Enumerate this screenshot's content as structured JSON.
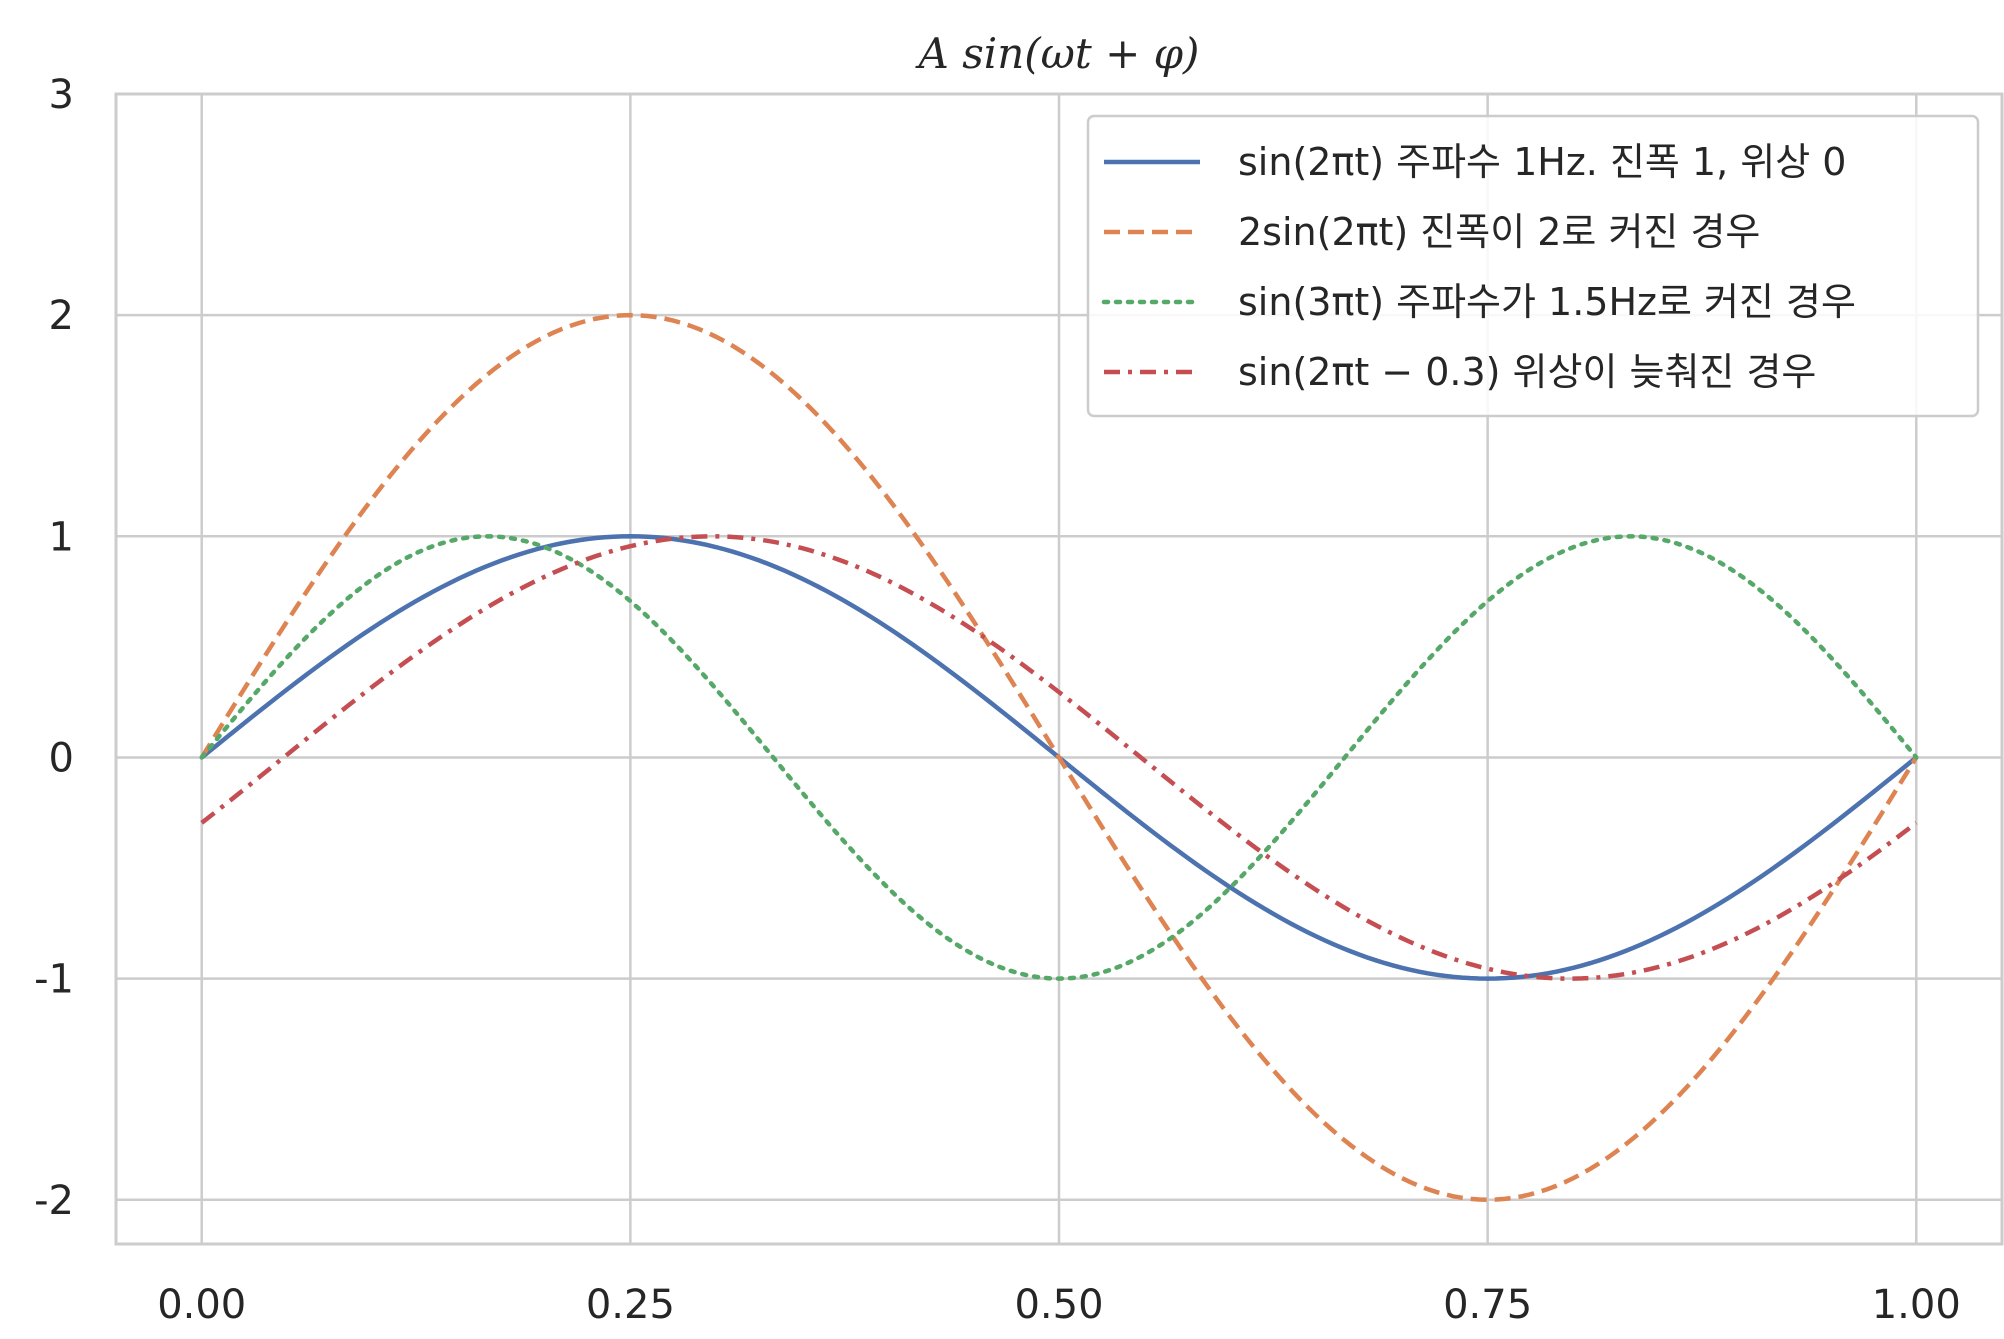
{
  "chart_data": {
    "type": "line",
    "title": "A sin(ωt + φ)",
    "xlabel": "",
    "ylabel": "",
    "xlim": [
      -0.05,
      1.05
    ],
    "ylim": [
      -2.2,
      3
    ],
    "grid": true,
    "legend_position": "top-right",
    "xticks": [
      0,
      0.25,
      0.5,
      0.75,
      1.0
    ],
    "xtick_labels": [
      "0.00",
      "0.25",
      "0.50",
      "0.75",
      "1.00"
    ],
    "yticks": [
      -2,
      -1,
      0,
      1,
      2,
      3
    ],
    "ytick_labels": [
      "-2",
      "-1",
      "0",
      "1",
      "2",
      "3"
    ],
    "x": [
      0,
      0.05,
      0.1,
      0.15,
      0.2,
      0.25,
      0.3,
      0.35,
      0.4,
      0.45,
      0.5,
      0.55,
      0.6,
      0.65,
      0.7,
      0.75,
      0.8,
      0.85,
      0.9,
      0.95,
      1.0
    ],
    "series": [
      {
        "name": "sin(2πt) 주파수 1Hz. 진폭 1, 위상 0",
        "color": "#4c72b0",
        "dash": "solid",
        "values": [
          0,
          0.309,
          0.588,
          0.809,
          0.951,
          1.0,
          0.951,
          0.809,
          0.588,
          0.309,
          0,
          -0.309,
          -0.588,
          -0.809,
          -0.951,
          -1.0,
          -0.951,
          -0.809,
          -0.588,
          -0.309,
          0
        ]
      },
      {
        "name": "2sin(2πt) 진폭이 2로 커진 경우",
        "color": "#dd8452",
        "dash": "dashed",
        "values": [
          0,
          0.618,
          1.176,
          1.618,
          1.902,
          2.0,
          1.902,
          1.618,
          1.176,
          0.618,
          0,
          -0.618,
          -1.176,
          -1.618,
          -1.902,
          -2.0,
          -1.902,
          -1.618,
          -1.176,
          -0.618,
          0
        ]
      },
      {
        "name": "sin(3πt) 주파수가 1.5Hz로 커진 경우",
        "color": "#55a868",
        "dash": "dotted",
        "values": [
          0,
          0.454,
          0.809,
          0.988,
          0.951,
          0.707,
          0.309,
          -0.156,
          -0.588,
          -0.891,
          -1.0,
          -0.891,
          -0.588,
          -0.156,
          0.309,
          0.707,
          0.951,
          0.988,
          0.809,
          0.454,
          0
        ]
      },
      {
        "name": "sin(2πt − 0.3) 위상이 늦춰진 경우",
        "color": "#c44e52",
        "dash": "dashdot",
        "values": [
          -0.296,
          0.017,
          0.327,
          0.605,
          0.825,
          0.955,
          0.995,
          0.945,
          0.796,
          0.565,
          0.296,
          -0.017,
          -0.327,
          -0.605,
          -0.825,
          -0.955,
          -0.995,
          -0.945,
          -0.796,
          -0.565,
          -0.296
        ]
      }
    ]
  }
}
